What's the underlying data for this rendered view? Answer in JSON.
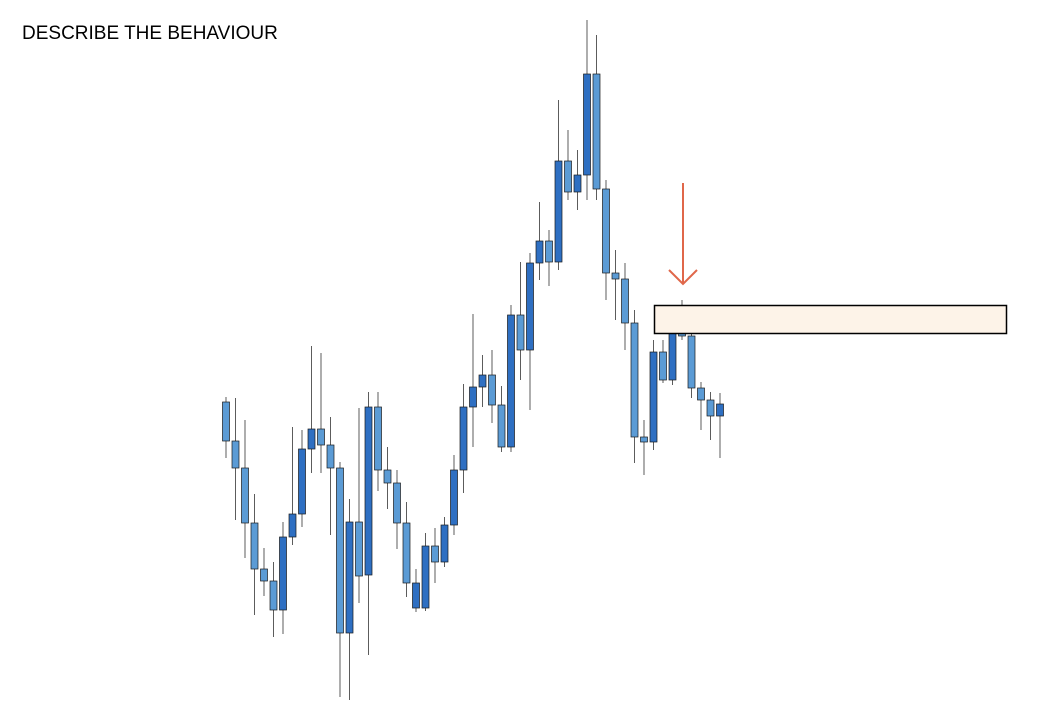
{
  "chart_data": {
    "type": "candlestick",
    "title": "DESCRIBE THE BEHAVIOUR",
    "open": [
      322,
      283,
      256,
      201,
      155,
      143,
      114,
      187,
      210,
      275,
      295,
      279,
      256,
      91,
      202,
      149,
      317,
      254,
      241,
      201,
      116,
      116,
      178,
      162,
      199,
      254,
      317,
      337,
      349,
      319,
      277,
      409,
      374,
      461,
      483,
      462,
      563,
      532,
      549,
      650,
      535,
      451,
      445,
      401,
      287,
      282,
      372,
      344,
      392,
      388,
      336,
      324,
      308
    ],
    "close": [
      283,
      256,
      201,
      155,
      143,
      114,
      187,
      210,
      275,
      295,
      279,
      256,
      91,
      202,
      148,
      317,
      254,
      241,
      201,
      141,
      141,
      178,
      162,
      199,
      254,
      317,
      337,
      349,
      319,
      277,
      409,
      374,
      461,
      483,
      462,
      563,
      532,
      549,
      650,
      535,
      451,
      445,
      401,
      287,
      282,
      372,
      344,
      392,
      388,
      336,
      324,
      308,
      320
    ],
    "high": [
      327,
      326,
      304,
      230,
      176,
      162,
      202,
      297,
      294,
      378,
      371,
      307,
      262,
      225,
      316,
      332,
      332,
      277,
      254,
      222,
      155,
      191,
      196,
      207,
      269,
      340,
      410,
      369,
      374,
      338,
      419,
      462,
      471,
      522,
      494,
      624,
      594,
      574,
      704,
      689,
      544,
      474,
      461,
      414,
      304,
      384,
      384,
      404,
      424,
      394,
      342,
      332,
      331
    ],
    "low": [
      266,
      204,
      166,
      109,
      128,
      87,
      90,
      179,
      197,
      251,
      251,
      189,
      27,
      24,
      121,
      69,
      233,
      215,
      175,
      127,
      112,
      113,
      141,
      157,
      189,
      231,
      277,
      317,
      301,
      272,
      272,
      344,
      314,
      444,
      438,
      454,
      524,
      514,
      524,
      524,
      424,
      404,
      374,
      261,
      249,
      274,
      341,
      339,
      384,
      326,
      294,
      284,
      266
    ],
    "up_color": "#2e6fc2",
    "down_color": "#5b9bd5",
    "ylim": [
      0,
      724
    ]
  }
}
